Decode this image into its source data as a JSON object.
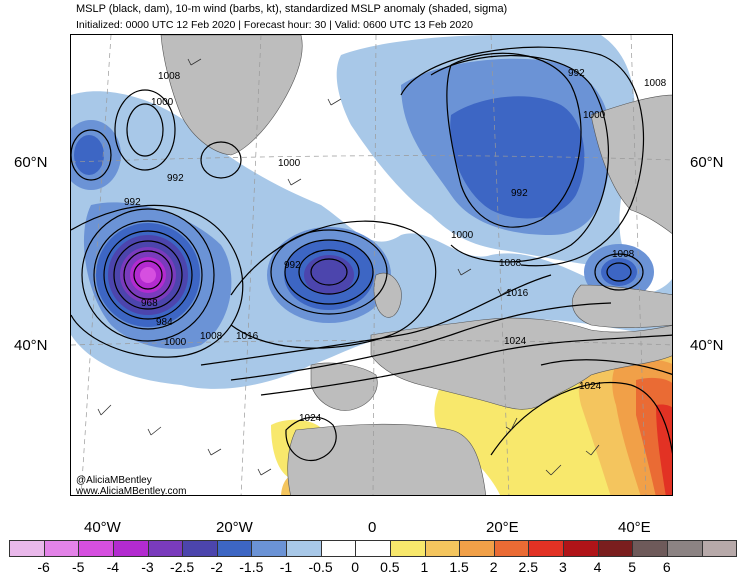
{
  "header": {
    "title": "MSLP (black, dam), 10-m wind (barbs, kt), standardized MSLP anomaly (shaded, sigma)",
    "subtitle": "Initialized: 0000 UTC 12 Feb 2020 | Forecast hour: 30 | Valid: 0600 UTC 13 Feb 2020"
  },
  "map": {
    "lat_labels": [
      "60°N",
      "40°N"
    ],
    "lon_labels": [
      "40°W",
      "20°W",
      "0",
      "20°E",
      "40°E"
    ],
    "isobar_labels": [
      "1008",
      "1000",
      "992",
      "992",
      "1000",
      "992",
      "968",
      "984",
      "1000",
      "1008",
      "1016",
      "992",
      "1000",
      "992",
      "1000",
      "1008",
      "1016",
      "1008",
      "1008",
      "1024",
      "1024",
      "1024"
    ],
    "credit": [
      "@AliciaMBentley",
      "www.AliciaMBentley.com"
    ],
    "colors": {
      "ocean": "#ffffff",
      "land": "#bdbdbd",
      "coast": "#555555"
    }
  },
  "colorbar": {
    "colors": [
      "#e9b8ea",
      "#e383e8",
      "#d64fe0",
      "#b32bd0",
      "#7a3bbd",
      "#4c45ad",
      "#3d66c4",
      "#6b93d6",
      "#a8c8e8",
      "#ffffff",
      "#ffffff",
      "#f8e86c",
      "#f4c55e",
      "#f1a048",
      "#ea6b34",
      "#e23224",
      "#b01418",
      "#7a1e1e",
      "#6e5a5a",
      "#8c8383",
      "#b7a9a9"
    ],
    "labels": [
      "-6",
      "-5",
      "-4",
      "-3",
      "-2.5",
      "-2",
      "-1.5",
      "-1",
      "-0.5",
      "0",
      "0.5",
      "1",
      "1.5",
      "2",
      "2.5",
      "3",
      "4",
      "5",
      "6"
    ]
  }
}
